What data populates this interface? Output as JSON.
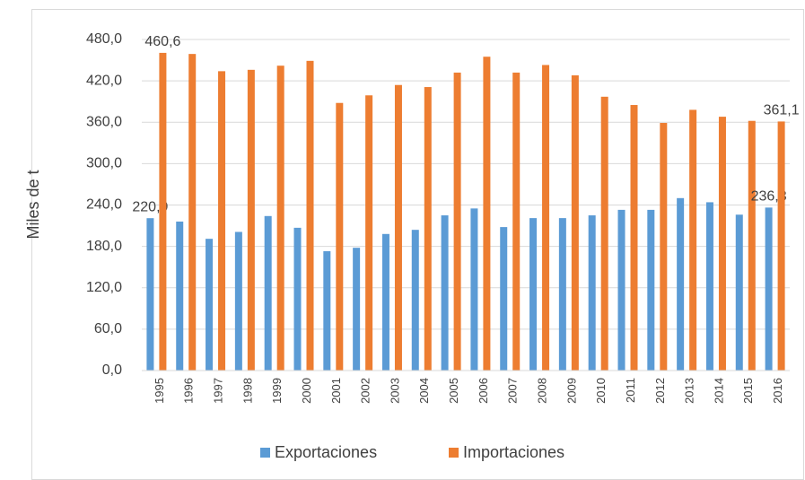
{
  "chart_data": {
    "type": "bar",
    "y_label": "Miles de t",
    "categories": [
      "1995",
      "1996",
      "1997",
      "1998",
      "1999",
      "2000",
      "2001",
      "2002",
      "2003",
      "2004",
      "2005",
      "2006",
      "2007",
      "2008",
      "2009",
      "2010",
      "2011",
      "2012",
      "2013",
      "2014",
      "2015",
      "2016"
    ],
    "series": [
      {
        "name": "Exportaciones",
        "color": "#5b9bd5",
        "values": [
          220.9,
          216,
          191,
          201,
          224,
          207,
          173,
          178,
          198,
          204,
          225,
          235,
          208,
          221,
          221,
          225,
          233,
          233,
          250,
          244,
          226,
          236.3
        ],
        "value_labels": [
          "220,9",
          null,
          null,
          null,
          null,
          null,
          null,
          null,
          null,
          null,
          null,
          null,
          null,
          null,
          null,
          null,
          null,
          null,
          null,
          null,
          null,
          "236,3"
        ]
      },
      {
        "name": "Importaciones",
        "color": "#ed7d31",
        "values": [
          460.6,
          459,
          434,
          436,
          442,
          449,
          388,
          399,
          414,
          411,
          432,
          455,
          432,
          443,
          428,
          397,
          385,
          359,
          378,
          368,
          362,
          361.1
        ],
        "value_labels": [
          "460,6",
          null,
          null,
          null,
          null,
          null,
          null,
          null,
          null,
          null,
          null,
          null,
          null,
          null,
          null,
          null,
          null,
          null,
          null,
          null,
          null,
          "361,1"
        ]
      }
    ],
    "ylim": [
      0,
      480
    ],
    "yticks": [
      {
        "value": 0,
        "label": "0,0"
      },
      {
        "value": 60,
        "label": "60,0"
      },
      {
        "value": 120,
        "label": "120,0"
      },
      {
        "value": 180,
        "label": "180,0"
      },
      {
        "value": 240,
        "label": "240,0"
      },
      {
        "value": 300,
        "label": "300,0"
      },
      {
        "value": 360,
        "label": "360,0"
      },
      {
        "value": 420,
        "label": "420,0"
      },
      {
        "value": 480,
        "label": "480,0"
      }
    ],
    "grid": true,
    "legend": "bottom"
  }
}
